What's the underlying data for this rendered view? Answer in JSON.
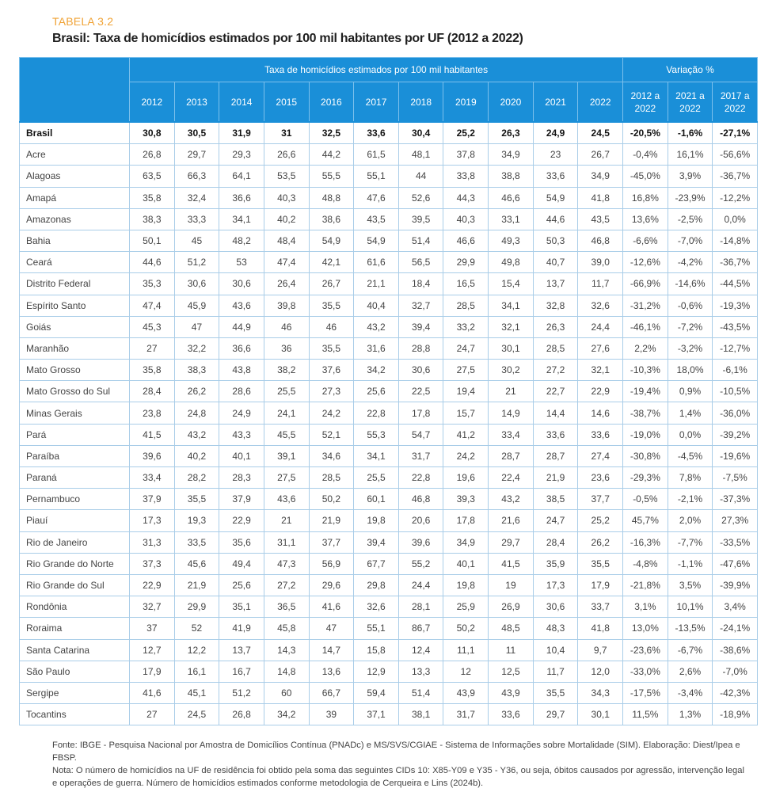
{
  "table_label": "TABELA 3.2",
  "title": "Brasil: Taxa de homicídios estimados por 100 mil habitantes por UF (2012 a 2022)",
  "colors": {
    "header_bg": "#1a8fd8",
    "label": "#f0a336",
    "border": "#a9cde8"
  },
  "header": {
    "group_rates": "Taxa de homicídios estimados por 100 mil habitantes",
    "group_variation": "Variação %",
    "years": [
      "2012",
      "2013",
      "2014",
      "2015",
      "2016",
      "2017",
      "2018",
      "2019",
      "2020",
      "2021",
      "2022"
    ],
    "variation": [
      [
        "2012 a",
        "2022"
      ],
      [
        "2021 a",
        "2022"
      ],
      [
        "2017 a",
        "2022"
      ]
    ]
  },
  "rows": [
    {
      "uf": "Brasil",
      "values": [
        "30,8",
        "30,5",
        "31,9",
        "31",
        "32,5",
        "33,6",
        "30,4",
        "25,2",
        "26,3",
        "24,9",
        "24,5",
        "-20,5%",
        "-1,6%",
        "-27,1%"
      ]
    },
    {
      "uf": "Acre",
      "values": [
        "26,8",
        "29,7",
        "29,3",
        "26,6",
        "44,2",
        "61,5",
        "48,1",
        "37,8",
        "34,9",
        "23",
        "26,7",
        "-0,4%",
        "16,1%",
        "-56,6%"
      ]
    },
    {
      "uf": "Alagoas",
      "values": [
        "63,5",
        "66,3",
        "64,1",
        "53,5",
        "55,5",
        "55,1",
        "44",
        "33,8",
        "38,8",
        "33,6",
        "34,9",
        "-45,0%",
        "3,9%",
        "-36,7%"
      ]
    },
    {
      "uf": "Amapá",
      "values": [
        "35,8",
        "32,4",
        "36,6",
        "40,3",
        "48,8",
        "47,6",
        "52,6",
        "44,3",
        "46,6",
        "54,9",
        "41,8",
        "16,8%",
        "-23,9%",
        "-12,2%"
      ]
    },
    {
      "uf": "Amazonas",
      "values": [
        "38,3",
        "33,3",
        "34,1",
        "40,2",
        "38,6",
        "43,5",
        "39,5",
        "40,3",
        "33,1",
        "44,6",
        "43,5",
        "13,6%",
        "-2,5%",
        "0,0%"
      ]
    },
    {
      "uf": "Bahia",
      "values": [
        "50,1",
        "45",
        "48,2",
        "48,4",
        "54,9",
        "54,9",
        "51,4",
        "46,6",
        "49,3",
        "50,3",
        "46,8",
        "-6,6%",
        "-7,0%",
        "-14,8%"
      ]
    },
    {
      "uf": "Ceará",
      "values": [
        "44,6",
        "51,2",
        "53",
        "47,4",
        "42,1",
        "61,6",
        "56,5",
        "29,9",
        "49,8",
        "40,7",
        "39,0",
        "-12,6%",
        "-4,2%",
        "-36,7%"
      ]
    },
    {
      "uf": "Distrito Federal",
      "values": [
        "35,3",
        "30,6",
        "30,6",
        "26,4",
        "26,7",
        "21,1",
        "18,4",
        "16,5",
        "15,4",
        "13,7",
        "11,7",
        "-66,9%",
        "-14,6%",
        "-44,5%"
      ]
    },
    {
      "uf": "Espírito Santo",
      "values": [
        "47,4",
        "45,9",
        "43,6",
        "39,8",
        "35,5",
        "40,4",
        "32,7",
        "28,5",
        "34,1",
        "32,8",
        "32,6",
        "-31,2%",
        "-0,6%",
        "-19,3%"
      ]
    },
    {
      "uf": "Goiás",
      "values": [
        "45,3",
        "47",
        "44,9",
        "46",
        "46",
        "43,2",
        "39,4",
        "33,2",
        "32,1",
        "26,3",
        "24,4",
        "-46,1%",
        "-7,2%",
        "-43,5%"
      ]
    },
    {
      "uf": "Maranhão",
      "values": [
        "27",
        "32,2",
        "36,6",
        "36",
        "35,5",
        "31,6",
        "28,8",
        "24,7",
        "30,1",
        "28,5",
        "27,6",
        "2,2%",
        "-3,2%",
        "-12,7%"
      ]
    },
    {
      "uf": "Mato Grosso",
      "values": [
        "35,8",
        "38,3",
        "43,8",
        "38,2",
        "37,6",
        "34,2",
        "30,6",
        "27,5",
        "30,2",
        "27,2",
        "32,1",
        "-10,3%",
        "18,0%",
        "-6,1%"
      ]
    },
    {
      "uf": "Mato Grosso do Sul",
      "values": [
        "28,4",
        "26,2",
        "28,6",
        "25,5",
        "27,3",
        "25,6",
        "22,5",
        "19,4",
        "21",
        "22,7",
        "22,9",
        "-19,4%",
        "0,9%",
        "-10,5%"
      ]
    },
    {
      "uf": "Minas Gerais",
      "values": [
        "23,8",
        "24,8",
        "24,9",
        "24,1",
        "24,2",
        "22,8",
        "17,8",
        "15,7",
        "14,9",
        "14,4",
        "14,6",
        "-38,7%",
        "1,4%",
        "-36,0%"
      ]
    },
    {
      "uf": "Pará",
      "values": [
        "41,5",
        "43,2",
        "43,3",
        "45,5",
        "52,1",
        "55,3",
        "54,7",
        "41,2",
        "33,4",
        "33,6",
        "33,6",
        "-19,0%",
        "0,0%",
        "-39,2%"
      ]
    },
    {
      "uf": "Paraíba",
      "values": [
        "39,6",
        "40,2",
        "40,1",
        "39,1",
        "34,6",
        "34,1",
        "31,7",
        "24,2",
        "28,7",
        "28,7",
        "27,4",
        "-30,8%",
        "-4,5%",
        "-19,6%"
      ]
    },
    {
      "uf": "Paraná",
      "values": [
        "33,4",
        "28,2",
        "28,3",
        "27,5",
        "28,5",
        "25,5",
        "22,8",
        "19,6",
        "22,4",
        "21,9",
        "23,6",
        "-29,3%",
        "7,8%",
        "-7,5%"
      ]
    },
    {
      "uf": "Pernambuco",
      "values": [
        "37,9",
        "35,5",
        "37,9",
        "43,6",
        "50,2",
        "60,1",
        "46,8",
        "39,3",
        "43,2",
        "38,5",
        "37,7",
        "-0,5%",
        "-2,1%",
        "-37,3%"
      ]
    },
    {
      "uf": "Piauí",
      "values": [
        "17,3",
        "19,3",
        "22,9",
        "21",
        "21,9",
        "19,8",
        "20,6",
        "17,8",
        "21,6",
        "24,7",
        "25,2",
        "45,7%",
        "2,0%",
        "27,3%"
      ]
    },
    {
      "uf": "Rio de Janeiro",
      "values": [
        "31,3",
        "33,5",
        "35,6",
        "31,1",
        "37,7",
        "39,4",
        "39,6",
        "34,9",
        "29,7",
        "28,4",
        "26,2",
        "-16,3%",
        "-7,7%",
        "-33,5%"
      ]
    },
    {
      "uf": "Rio Grande do Norte",
      "values": [
        "37,3",
        "45,6",
        "49,4",
        "47,3",
        "56,9",
        "67,7",
        "55,2",
        "40,1",
        "41,5",
        "35,9",
        "35,5",
        "-4,8%",
        "-1,1%",
        "-47,6%"
      ]
    },
    {
      "uf": "Rio Grande do Sul",
      "values": [
        "22,9",
        "21,9",
        "25,6",
        "27,2",
        "29,6",
        "29,8",
        "24,4",
        "19,8",
        "19",
        "17,3",
        "17,9",
        "-21,8%",
        "3,5%",
        "-39,9%"
      ]
    },
    {
      "uf": "Rondônia",
      "values": [
        "32,7",
        "29,9",
        "35,1",
        "36,5",
        "41,6",
        "32,6",
        "28,1",
        "25,9",
        "26,9",
        "30,6",
        "33,7",
        "3,1%",
        "10,1%",
        "3,4%"
      ]
    },
    {
      "uf": "Roraima",
      "values": [
        "37",
        "52",
        "41,9",
        "45,8",
        "47",
        "55,1",
        "86,7",
        "50,2",
        "48,5",
        "48,3",
        "41,8",
        "13,0%",
        "-13,5%",
        "-24,1%"
      ]
    },
    {
      "uf": "Santa Catarina",
      "values": [
        "12,7",
        "12,2",
        "13,7",
        "14,3",
        "14,7",
        "15,8",
        "12,4",
        "11,1",
        "11",
        "10,4",
        "9,7",
        "-23,6%",
        "-6,7%",
        "-38,6%"
      ]
    },
    {
      "uf": "São Paulo",
      "values": [
        "17,9",
        "16,1",
        "16,7",
        "14,8",
        "13,6",
        "12,9",
        "13,3",
        "12",
        "12,5",
        "11,7",
        "12,0",
        "-33,0%",
        "2,6%",
        "-7,0%"
      ]
    },
    {
      "uf": "Sergipe",
      "values": [
        "41,6",
        "45,1",
        "51,2",
        "60",
        "66,7",
        "59,4",
        "51,4",
        "43,9",
        "43,9",
        "35,5",
        "34,3",
        "-17,5%",
        "-3,4%",
        "-42,3%"
      ]
    },
    {
      "uf": "Tocantins",
      "values": [
        "27",
        "24,5",
        "26,8",
        "34,2",
        "39",
        "37,1",
        "38,1",
        "31,7",
        "33,6",
        "29,7",
        "30,1",
        "11,5%",
        "1,3%",
        "-18,9%"
      ]
    }
  ],
  "footer": {
    "source": "Fonte: IBGE - Pesquisa Nacional por Amostra de Domicílios Contínua (PNADc) e MS/SVS/CGIAE - Sistema de Informações sobre Mortalidade (SIM). Elaboração: Diest/Ipea e FBSP.",
    "note": "Nota: O número de homicídios na UF de residência foi obtido pela soma das seguintes CIDs 10: X85-Y09 e Y35 - Y36, ou seja, óbitos causados por agressão, intervenção legal e operações de guerra. Número de homicídios estimados conforme metodologia de Cerqueira e Lins (2024b)."
  }
}
